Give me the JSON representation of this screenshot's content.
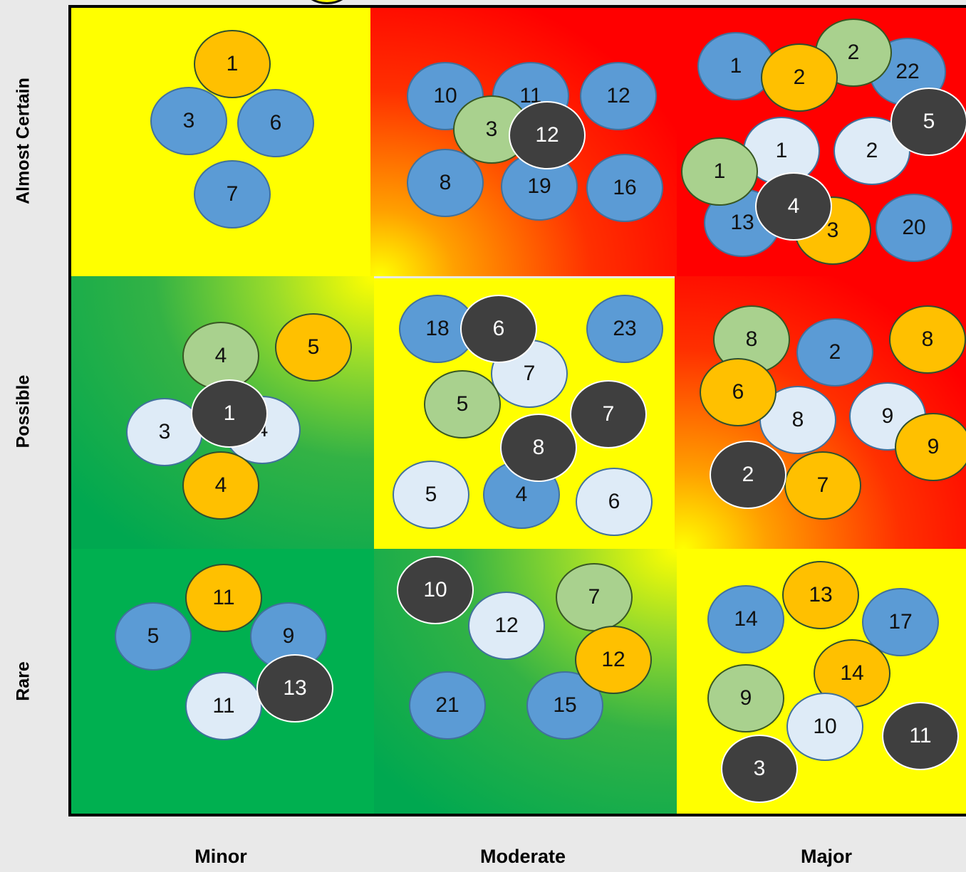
{
  "axes": {
    "likelihood_labels": [
      "Almost Certain",
      "Possible",
      "Rare"
    ],
    "impact_labels": [
      "Minor",
      "Moderate",
      "Major"
    ]
  },
  "colors": {
    "high_risk": "#ff0000",
    "medium_risk": "#ffff00",
    "low_risk": "#00b050",
    "blue_marker": "#5b9bd5",
    "orange_marker": "#ffc000",
    "green_marker": "#a9d18e",
    "pale_marker": "#deebf7",
    "dark_marker": "#3f3f3f"
  },
  "cells": [
    {
      "likelihood": "Almost Certain",
      "impact": "Minor",
      "markers": [
        {
          "color": "orange",
          "label": "1"
        },
        {
          "color": "blue",
          "label": "3"
        },
        {
          "color": "blue",
          "label": "6"
        },
        {
          "color": "blue",
          "label": "7"
        }
      ]
    },
    {
      "likelihood": "Almost Certain",
      "impact": "Moderate",
      "markers": [
        {
          "color": "blue",
          "label": "10"
        },
        {
          "color": "blue",
          "label": "11"
        },
        {
          "color": "blue",
          "label": "12"
        },
        {
          "color": "blue",
          "label": "8"
        },
        {
          "color": "blue",
          "label": "19"
        },
        {
          "color": "blue",
          "label": "16"
        },
        {
          "color": "green",
          "label": "3"
        },
        {
          "color": "dark",
          "label": "12"
        }
      ]
    },
    {
      "likelihood": "Almost Certain",
      "impact": "Major",
      "markers": [
        {
          "color": "blue",
          "label": "1"
        },
        {
          "color": "blue",
          "label": "22"
        },
        {
          "color": "green",
          "label": "2"
        },
        {
          "color": "orange",
          "label": "2"
        },
        {
          "color": "pale",
          "label": "1"
        },
        {
          "color": "pale",
          "label": "2"
        },
        {
          "color": "dark",
          "label": "5"
        },
        {
          "color": "blue",
          "label": "13"
        },
        {
          "color": "orange",
          "label": "3"
        },
        {
          "color": "blue",
          "label": "20"
        },
        {
          "color": "green",
          "label": "1"
        },
        {
          "color": "dark",
          "label": "4"
        }
      ]
    },
    {
      "likelihood": "Possible",
      "impact": "Minor",
      "markers": [
        {
          "color": "green",
          "label": "4"
        },
        {
          "color": "orange",
          "label": "5"
        },
        {
          "color": "pale",
          "label": "3"
        },
        {
          "color": "pale",
          "label": "4"
        },
        {
          "color": "orange",
          "label": "4"
        },
        {
          "color": "dark",
          "label": "1"
        }
      ]
    },
    {
      "likelihood": "Possible",
      "impact": "Moderate",
      "markers": [
        {
          "color": "blue",
          "label": "18"
        },
        {
          "color": "blue",
          "label": "23"
        },
        {
          "color": "pale",
          "label": "7"
        },
        {
          "color": "dark",
          "label": "6"
        },
        {
          "color": "green",
          "label": "5"
        },
        {
          "color": "dark",
          "label": "7"
        },
        {
          "color": "pale",
          "label": "5"
        },
        {
          "color": "blue",
          "label": "4"
        },
        {
          "color": "pale",
          "label": "6"
        },
        {
          "color": "dark",
          "label": "8"
        }
      ]
    },
    {
      "likelihood": "Possible",
      "impact": "Major",
      "markers": [
        {
          "color": "green",
          "label": "8"
        },
        {
          "color": "blue",
          "label": "2"
        },
        {
          "color": "orange",
          "label": "8"
        },
        {
          "color": "pale",
          "label": "8"
        },
        {
          "color": "orange",
          "label": "6"
        },
        {
          "color": "pale",
          "label": "9"
        },
        {
          "color": "orange",
          "label": "9"
        },
        {
          "color": "orange",
          "label": "7"
        },
        {
          "color": "dark",
          "label": "2"
        }
      ]
    },
    {
      "likelihood": "Rare",
      "impact": "Minor",
      "markers": [
        {
          "color": "blue",
          "label": "5"
        },
        {
          "color": "blue",
          "label": "9"
        },
        {
          "color": "orange",
          "label": "11"
        },
        {
          "color": "pale",
          "label": "11"
        },
        {
          "color": "dark",
          "label": "13"
        }
      ]
    },
    {
      "likelihood": "Rare",
      "impact": "Moderate",
      "markers": [
        {
          "color": "dark",
          "label": "10"
        },
        {
          "color": "pale",
          "label": "12"
        },
        {
          "color": "green",
          "label": "7"
        },
        {
          "color": "blue",
          "label": "21"
        },
        {
          "color": "blue",
          "label": "15"
        },
        {
          "color": "orange",
          "label": "12"
        }
      ]
    },
    {
      "likelihood": "Rare",
      "impact": "Major",
      "markers": [
        {
          "color": "blue",
          "label": "14"
        },
        {
          "color": "orange",
          "label": "13"
        },
        {
          "color": "blue",
          "label": "17"
        },
        {
          "color": "orange",
          "label": "14"
        },
        {
          "color": "green",
          "label": "9"
        },
        {
          "color": "pale",
          "label": "10"
        },
        {
          "color": "dark",
          "label": "11"
        },
        {
          "color": "dark",
          "label": "3"
        }
      ]
    }
  ]
}
